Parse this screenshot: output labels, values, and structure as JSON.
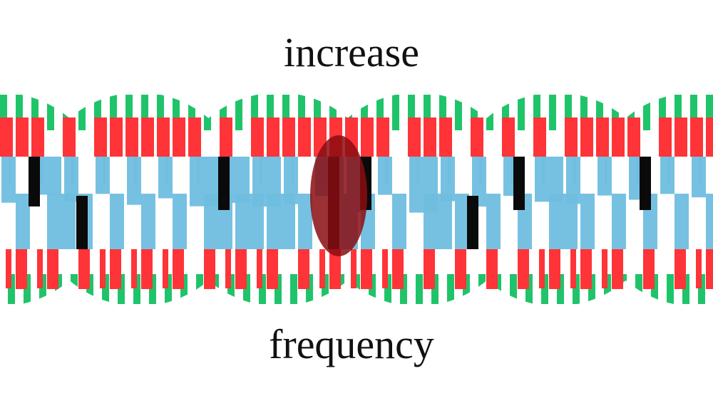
{
  "title": "increase",
  "subtitle": "frequency"
}
